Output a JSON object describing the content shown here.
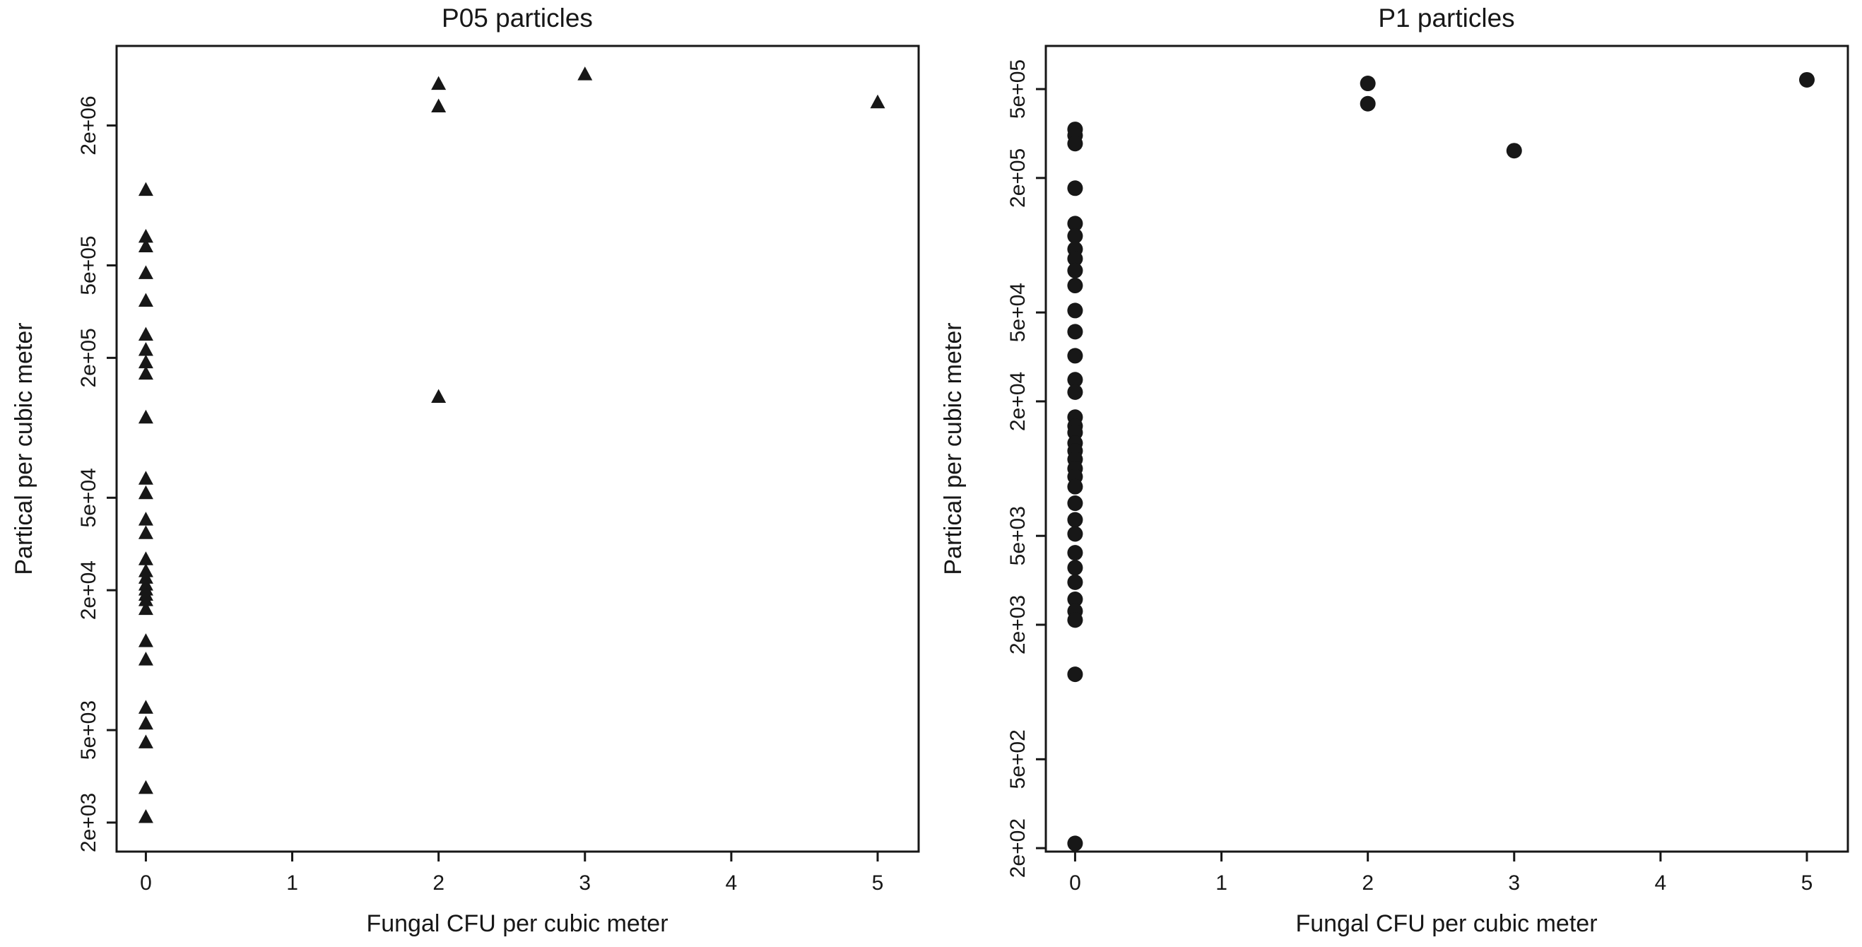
{
  "figure": {
    "background": "#ffffff",
    "foreground": "#171717"
  },
  "chart_data": [
    {
      "type": "scatter",
      "title": "P05 particles",
      "xlabel": "Fungal CFU per cubic meter",
      "ylabel": "Partical per cubic meter",
      "marker": "triangle",
      "color": "#171717",
      "ylog": true,
      "xlim": [
        -0.2,
        5.28
      ],
      "ylim": [
        1500,
        4400000
      ],
      "x_ticks": [
        0,
        1,
        2,
        3,
        4,
        5
      ],
      "x_tick_labels": [
        "0",
        "1",
        "2",
        "3",
        "4",
        "5"
      ],
      "y_ticks": [
        2000,
        5000,
        20000,
        50000,
        200000,
        500000,
        2000000
      ],
      "y_tick_labels": [
        "2e+03",
        "5e+03",
        "2e+04",
        "5e+04",
        "2e+05",
        "5e+05",
        "2e+06"
      ],
      "points": [
        [
          0,
          1050000
        ],
        [
          0,
          660000
        ],
        [
          0,
          600000
        ],
        [
          0,
          460000
        ],
        [
          0,
          350000
        ],
        [
          0,
          250000
        ],
        [
          0,
          215000
        ],
        [
          0,
          190000
        ],
        [
          0,
          170000
        ],
        [
          0,
          110000
        ],
        [
          0,
          60000
        ],
        [
          0,
          52000
        ],
        [
          0,
          40000
        ],
        [
          0,
          35000
        ],
        [
          0,
          27000
        ],
        [
          0,
          24000
        ],
        [
          0,
          22500
        ],
        [
          0,
          21000
        ],
        [
          0,
          20000
        ],
        [
          0,
          19000
        ],
        [
          0,
          18000
        ],
        [
          0,
          16500
        ],
        [
          0,
          12000
        ],
        [
          0,
          10000
        ],
        [
          0,
          6200
        ],
        [
          0,
          5300
        ],
        [
          0,
          4400
        ],
        [
          0,
          2800
        ],
        [
          0,
          2100
        ],
        [
          2,
          3000000
        ],
        [
          2,
          2400000
        ],
        [
          2,
          135000
        ],
        [
          3,
          3300000
        ],
        [
          5,
          2500000
        ]
      ]
    },
    {
      "type": "scatter",
      "title": "P1 particles",
      "xlabel": "Fungal CFU per cubic meter",
      "ylabel": "Partical per cubic meter",
      "marker": "circle",
      "color": "#171717",
      "ylog": true,
      "xlim": [
        -0.2,
        5.28
      ],
      "ylim": [
        193,
        780000
      ],
      "x_ticks": [
        0,
        1,
        2,
        3,
        4,
        5
      ],
      "x_tick_labels": [
        "0",
        "1",
        "2",
        "3",
        "4",
        "5"
      ],
      "y_ticks": [
        200,
        500,
        2000,
        5000,
        20000,
        50000,
        200000,
        500000
      ],
      "y_tick_labels": [
        "2e+02",
        "5e+02",
        "2e+03",
        "5e+03",
        "2e+04",
        "5e+04",
        "2e+05",
        "5e+05"
      ],
      "points": [
        [
          0,
          330000
        ],
        [
          0,
          310000
        ],
        [
          0,
          285000
        ],
        [
          0,
          180000
        ],
        [
          0,
          125000
        ],
        [
          0,
          110000
        ],
        [
          0,
          96000
        ],
        [
          0,
          87000
        ],
        [
          0,
          77000
        ],
        [
          0,
          66000
        ],
        [
          0,
          51000
        ],
        [
          0,
          41000
        ],
        [
          0,
          32000
        ],
        [
          0,
          25000
        ],
        [
          0,
          22000
        ],
        [
          0,
          17000
        ],
        [
          0,
          15500
        ],
        [
          0,
          14500
        ],
        [
          0,
          13000
        ],
        [
          0,
          12000
        ],
        [
          0,
          11000
        ],
        [
          0,
          10000
        ],
        [
          0,
          9200
        ],
        [
          0,
          8300
        ],
        [
          0,
          7000
        ],
        [
          0,
          5900
        ],
        [
          0,
          5100
        ],
        [
          0,
          4200
        ],
        [
          0,
          3600
        ],
        [
          0,
          3100
        ],
        [
          0,
          2600
        ],
        [
          0,
          2300
        ],
        [
          0,
          2100
        ],
        [
          0,
          1200
        ],
        [
          0,
          210
        ],
        [
          2,
          530000
        ],
        [
          2,
          430000
        ],
        [
          3,
          265000
        ],
        [
          5,
          550000
        ]
      ]
    }
  ]
}
